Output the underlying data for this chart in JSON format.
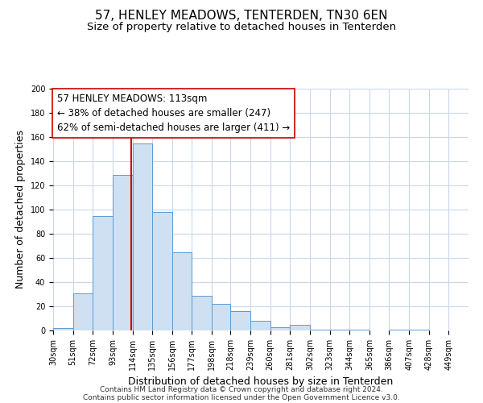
{
  "title": "57, HENLEY MEADOWS, TENTERDEN, TN30 6EN",
  "subtitle": "Size of property relative to detached houses in Tenterden",
  "xlabel": "Distribution of detached houses by size in Tenterden",
  "ylabel": "Number of detached properties",
  "bin_labels": [
    "30sqm",
    "51sqm",
    "72sqm",
    "93sqm",
    "114sqm",
    "135sqm",
    "156sqm",
    "177sqm",
    "198sqm",
    "218sqm",
    "239sqm",
    "260sqm",
    "281sqm",
    "302sqm",
    "323sqm",
    "344sqm",
    "365sqm",
    "386sqm",
    "407sqm",
    "428sqm",
    "449sqm"
  ],
  "bin_edges": [
    30,
    51,
    72,
    93,
    114,
    135,
    156,
    177,
    198,
    218,
    239,
    260,
    281,
    302,
    323,
    344,
    365,
    386,
    407,
    428,
    449
  ],
  "bar_heights": [
    2,
    31,
    95,
    129,
    155,
    98,
    65,
    29,
    22,
    16,
    8,
    3,
    5,
    1,
    1,
    1,
    0,
    1,
    1,
    0
  ],
  "bar_color": "#cfe0f2",
  "bar_edge_color": "#5b9bd5",
  "vline_x": 113,
  "vline_color": "#cc0000",
  "annotation_lines": [
    "57 HENLEY MEADOWS: 113sqm",
    "← 38% of detached houses are smaller (247)",
    "62% of semi-detached houses are larger (411) →"
  ],
  "ylim": [
    0,
    200
  ],
  "yticks": [
    0,
    20,
    40,
    60,
    80,
    100,
    120,
    140,
    160,
    180,
    200
  ],
  "grid_color": "#c8d8ec",
  "background_color": "#ffffff",
  "footer_lines": [
    "Contains HM Land Registry data © Crown copyright and database right 2024.",
    "Contains public sector information licensed under the Open Government Licence v3.0."
  ],
  "title_fontsize": 11,
  "subtitle_fontsize": 9.5,
  "xlabel_fontsize": 9,
  "ylabel_fontsize": 9,
  "annotation_fontsize": 8.5,
  "footer_fontsize": 6.5,
  "tick_fontsize": 7
}
